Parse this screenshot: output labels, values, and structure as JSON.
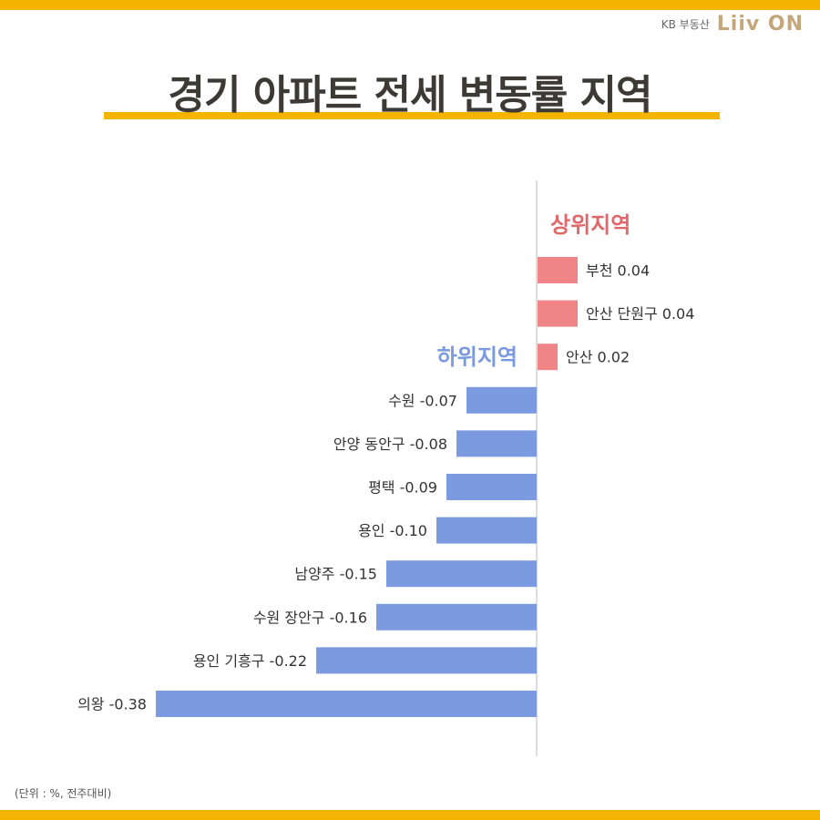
{
  "brand": {
    "text": "KB 부동산",
    "logo_text": "Liiv ON"
  },
  "title": "경기 아파트 전세 변동률 지역",
  "footnote": "(단위 : %, 전주대비)",
  "colors": {
    "positive": "#f08587",
    "negative": "#7b9ae0",
    "accent": "#f5b400"
  },
  "chart_data": {
    "type": "bar",
    "orientation": "horizontal",
    "groups": [
      {
        "label": "상위지역",
        "color": "#e0686b"
      },
      {
        "label": "하위지역",
        "color": "#7b9ae0"
      }
    ],
    "categories": [
      "부천",
      "안산 단원구",
      "안산",
      "수원",
      "안양 동안구",
      "평택",
      "용인",
      "남양주",
      "수원 장안구",
      "용인 기흥구",
      "의왕"
    ],
    "values": [
      0.04,
      0.04,
      0.02,
      -0.07,
      -0.08,
      -0.09,
      -0.1,
      -0.15,
      -0.16,
      -0.22,
      -0.38
    ],
    "data_labels": [
      "부천 0.04",
      "안산 단원구 0.04",
      "안산 0.02",
      "수원 -0.07",
      "안양 동안구 -0.08",
      "평택 -0.09",
      "용인 -0.10",
      "남양주 -0.15",
      "수원 장안구 -0.16",
      "용인 기흥구 -0.22",
      "의왕 -0.38"
    ]
  }
}
